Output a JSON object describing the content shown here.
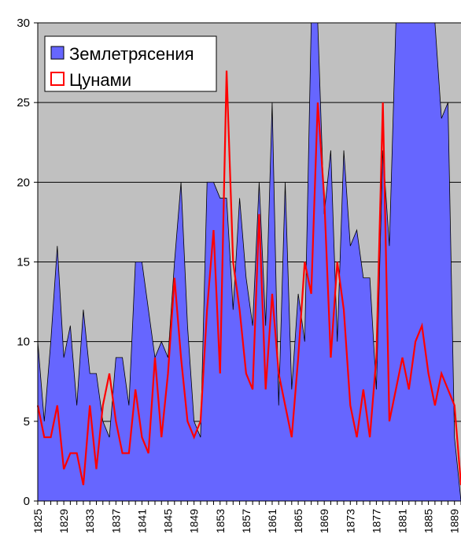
{
  "chart_data": {
    "type": "area",
    "title": "",
    "xlabel": "",
    "ylabel": "",
    "ylim": [
      0,
      30
    ],
    "yticks": [
      0,
      5,
      10,
      15,
      20,
      25,
      30
    ],
    "grid": true,
    "legend_position": "top-left",
    "x": [
      1825,
      1826,
      1827,
      1828,
      1829,
      1830,
      1831,
      1832,
      1833,
      1834,
      1835,
      1836,
      1837,
      1838,
      1839,
      1840,
      1841,
      1842,
      1843,
      1844,
      1845,
      1846,
      1847,
      1848,
      1849,
      1850,
      1851,
      1852,
      1853,
      1854,
      1855,
      1856,
      1857,
      1858,
      1859,
      1860,
      1861,
      1862,
      1863,
      1864,
      1865,
      1866,
      1867,
      1868,
      1869,
      1870,
      1871,
      1872,
      1873,
      1874,
      1875,
      1876,
      1877,
      1878,
      1879,
      1880,
      1881,
      1882,
      1883,
      1884,
      1885,
      1886,
      1887,
      1888,
      1889,
      1890
    ],
    "xtick_labels": [
      "1825",
      "1829",
      "1833",
      "1837",
      "1841",
      "1845",
      "1849",
      "1853",
      "1857",
      "1861",
      "1865",
      "1869",
      "1873",
      "1877",
      "1881",
      "1885",
      "1889"
    ],
    "series": [
      {
        "name": "Землетрясения",
        "style": "filled-area",
        "color": "#6666ff",
        "values": [
          10,
          5,
          10,
          16,
          9,
          11,
          6,
          12,
          8,
          8,
          5,
          4,
          9,
          9,
          6,
          15,
          15,
          12,
          9,
          10,
          9,
          15,
          20,
          11,
          5,
          4,
          20,
          20,
          19,
          19,
          12,
          19,
          14,
          11,
          20,
          11,
          25,
          6,
          20,
          7,
          13,
          10,
          31,
          31,
          18,
          22,
          10,
          22,
          16,
          17,
          14,
          14,
          7,
          22,
          16,
          30,
          30,
          30,
          30,
          30,
          30,
          30,
          24,
          25,
          4,
          0
        ]
      },
      {
        "name": "Цунами",
        "style": "line",
        "color": "#ff0000",
        "values": [
          6,
          4,
          4,
          6,
          2,
          3,
          3,
          1,
          6,
          2,
          6,
          8,
          5,
          3,
          3,
          7,
          4,
          3,
          9,
          4,
          8,
          14,
          9,
          5,
          4,
          5,
          12,
          17,
          8,
          27,
          15,
          12,
          8,
          7,
          18,
          7,
          13,
          8,
          6,
          4,
          9,
          15,
          13,
          25,
          19,
          9,
          15,
          12,
          6,
          4,
          7,
          4,
          9,
          25,
          5,
          7,
          9,
          7,
          10,
          11,
          8,
          6,
          8,
          7,
          6,
          1
        ]
      }
    ]
  },
  "colors": {
    "plot_background": "#c0c0c0",
    "gridline": "#000000",
    "area_fill": "#6666ff",
    "line": "#ff0000"
  }
}
